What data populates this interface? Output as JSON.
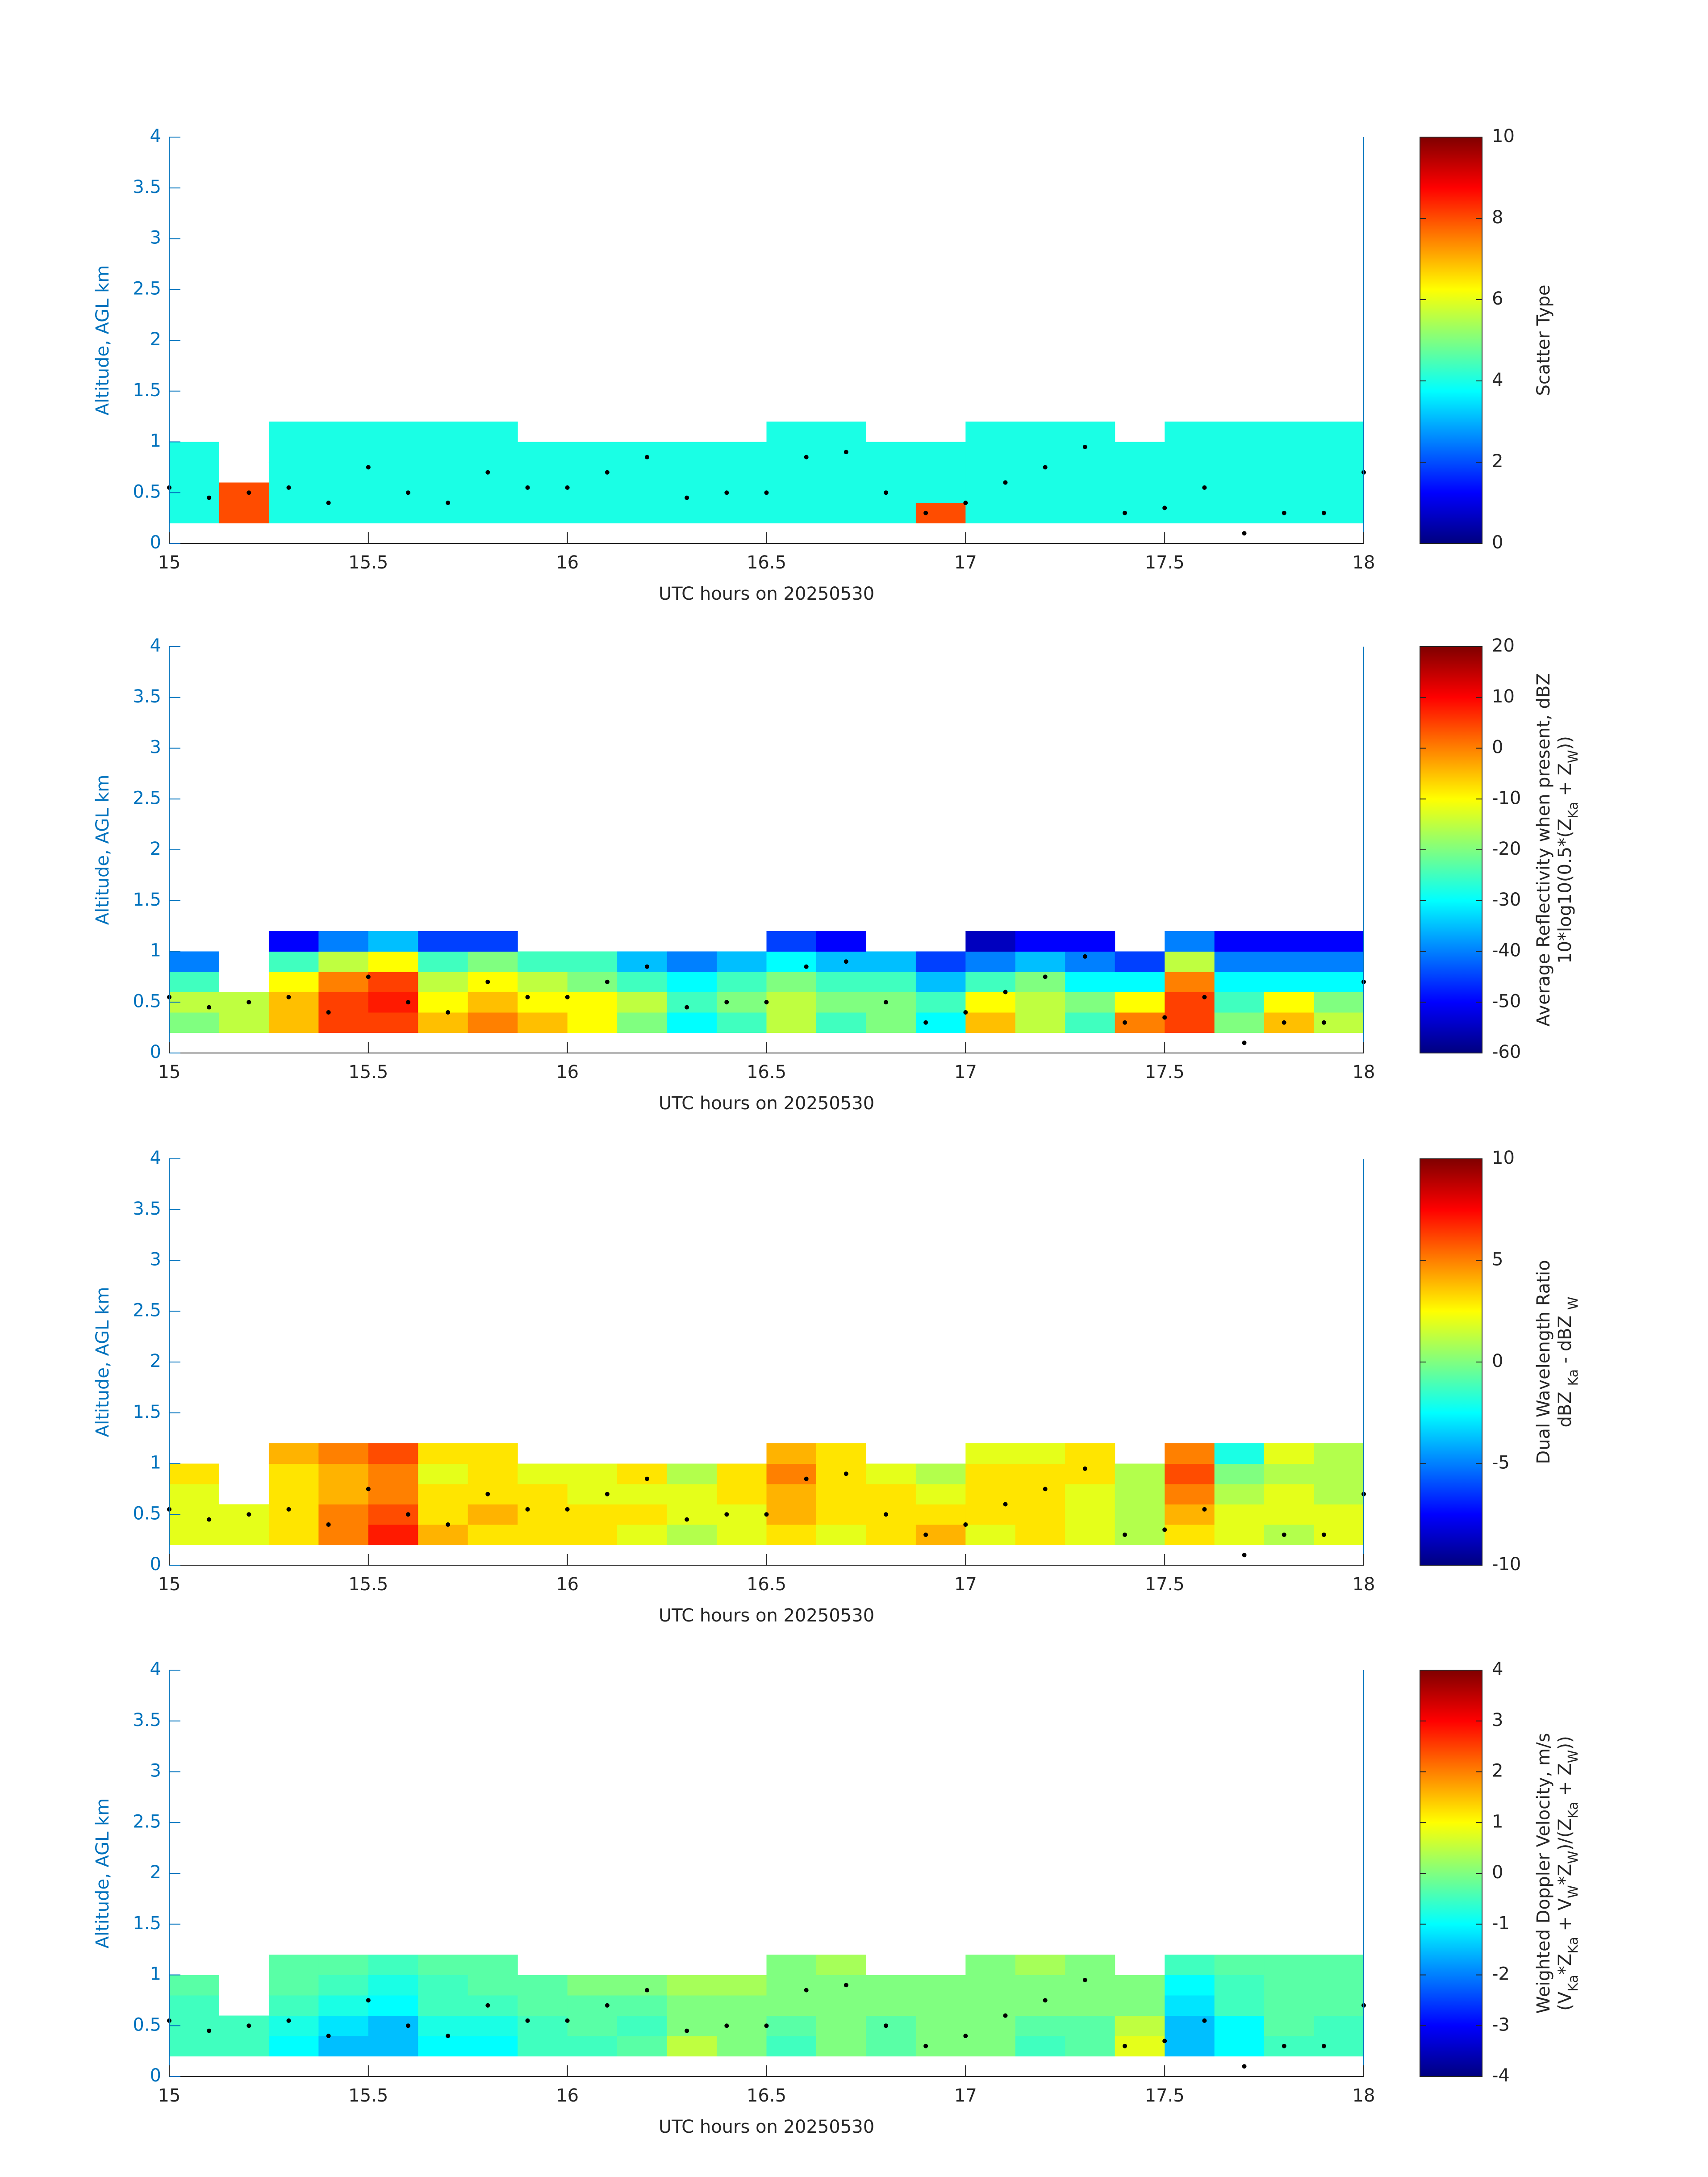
{
  "chart_data": [
    {
      "type": "heatmap",
      "xlabel": "UTC hours on 20250530",
      "ylabel": "Altitude, AGL km",
      "clabel": [
        [
          "Scatter Type"
        ]
      ],
      "colormap": "jet",
      "clim": [
        0,
        10
      ],
      "cticks": [
        0,
        2,
        4,
        6,
        8,
        10
      ],
      "xlim": [
        15,
        18
      ],
      "xticks": [
        15,
        15.5,
        16,
        16.5,
        17,
        17.5,
        18
      ],
      "ylim": [
        0,
        4
      ],
      "yticks": [
        0,
        0.5,
        1,
        1.5,
        2,
        2.5,
        3,
        3.5,
        4
      ],
      "x_edges": [
        15,
        15.125,
        15.25,
        15.375,
        15.5,
        15.625,
        15.75,
        15.875,
        16,
        16.125,
        16.25,
        16.375,
        16.5,
        16.625,
        16.75,
        16.875,
        17,
        17.125,
        17.25,
        17.375,
        17.5,
        17.625,
        17.75,
        17.875,
        18
      ],
      "y_edges": [
        0.2,
        0.4,
        0.6,
        0.8,
        1.0,
        1.2
      ],
      "values": [
        [
          4,
          8,
          4,
          4,
          4,
          4,
          4,
          4,
          4,
          4,
          4,
          4,
          4,
          4,
          4,
          8,
          4,
          4,
          4,
          4,
          4,
          4,
          4,
          4
        ],
        [
          4,
          8,
          4,
          4,
          4,
          4,
          4,
          4,
          4,
          4,
          4,
          4,
          4,
          4,
          4,
          4,
          4,
          4,
          4,
          4,
          4,
          4,
          4,
          4
        ],
        [
          4,
          null,
          4,
          4,
          4,
          4,
          4,
          4,
          4,
          4,
          4,
          4,
          4,
          4,
          4,
          4,
          4,
          4,
          4,
          4,
          4,
          4,
          4,
          4
        ],
        [
          4,
          null,
          4,
          4,
          4,
          4,
          4,
          4,
          4,
          4,
          4,
          4,
          4,
          4,
          4,
          4,
          4,
          4,
          4,
          4,
          4,
          4,
          4,
          4
        ],
        [
          null,
          null,
          4,
          4,
          4,
          4,
          4,
          null,
          null,
          null,
          null,
          null,
          4,
          4,
          null,
          null,
          4,
          4,
          4,
          null,
          4,
          4,
          4,
          4
        ]
      ],
      "series": [
        {
          "type": "scatter",
          "color": "#000000",
          "x": [
            15.0,
            15.1,
            15.2,
            15.3,
            15.4,
            15.5,
            15.6,
            15.7,
            15.8,
            15.9,
            16.0,
            16.1,
            16.2,
            16.3,
            16.4,
            16.5,
            16.6,
            16.7,
            16.8,
            16.9,
            17.0,
            17.1,
            17.2,
            17.3,
            17.4,
            17.5,
            17.6,
            17.7,
            17.8,
            17.9,
            18.0
          ],
          "y": [
            0.55,
            0.45,
            0.5,
            0.55,
            0.4,
            0.75,
            0.5,
            0.4,
            0.7,
            0.55,
            0.55,
            0.7,
            0.85,
            0.45,
            0.5,
            0.5,
            0.85,
            0.9,
            0.5,
            0.3,
            0.4,
            0.6,
            0.75,
            0.95,
            0.3,
            0.35,
            0.55,
            0.1,
            0.3,
            0.3,
            0.7
          ]
        }
      ]
    },
    {
      "type": "heatmap",
      "xlabel": "UTC hours on 20250530",
      "ylabel": "Altitude, AGL km",
      "clabel": [
        [
          "Average Reflectivity when present, dBZ"
        ],
        [
          "10*log10(0.5*(Z",
          "Ka",
          " + Z",
          "W",
          "))"
        ]
      ],
      "colormap": "jet",
      "clim": [
        -60,
        20
      ],
      "cticks": [
        -60,
        -50,
        -40,
        -30,
        -20,
        -10,
        0,
        10,
        20
      ],
      "xlim": [
        15,
        18
      ],
      "xticks": [
        15,
        15.5,
        16,
        16.5,
        17,
        17.5,
        18
      ],
      "ylim": [
        0,
        4
      ],
      "yticks": [
        0,
        0.5,
        1,
        1.5,
        2,
        2.5,
        3,
        3.5,
        4
      ],
      "x_edges": [
        15,
        15.125,
        15.25,
        15.375,
        15.5,
        15.625,
        15.75,
        15.875,
        16,
        16.125,
        16.25,
        16.375,
        16.5,
        16.625,
        16.75,
        16.875,
        17,
        17.125,
        17.25,
        17.375,
        17.5,
        17.625,
        17.75,
        17.875,
        18
      ],
      "y_edges": [
        0.2,
        0.4,
        0.6,
        0.8,
        1.0,
        1.2
      ],
      "values": [
        [
          -20,
          -15,
          -5,
          5,
          5,
          -5,
          0,
          -5,
          -10,
          -20,
          -30,
          -25,
          -15,
          -25,
          -20,
          -30,
          -5,
          -15,
          -25,
          0,
          5,
          -20,
          -5,
          -15
        ],
        [
          -15,
          -15,
          -5,
          5,
          8,
          -10,
          -5,
          -10,
          -10,
          -15,
          -25,
          -20,
          -15,
          -20,
          -20,
          -25,
          -10,
          -15,
          -20,
          -10,
          5,
          -25,
          -10,
          -20
        ],
        [
          -25,
          null,
          -10,
          0,
          5,
          -15,
          -10,
          -15,
          -20,
          -25,
          -30,
          -25,
          -20,
          -25,
          -25,
          -35,
          -25,
          -20,
          -30,
          -30,
          0,
          -30,
          -30,
          -30
        ],
        [
          -40,
          null,
          -25,
          -15,
          -10,
          -25,
          -20,
          -25,
          -25,
          -35,
          -40,
          -35,
          -30,
          -35,
          -35,
          -45,
          -40,
          -35,
          -40,
          -45,
          -15,
          -40,
          -40,
          -40
        ],
        [
          null,
          null,
          -50,
          -40,
          -35,
          -45,
          -45,
          null,
          null,
          null,
          null,
          null,
          -45,
          -50,
          null,
          null,
          -55,
          -50,
          -50,
          null,
          -40,
          -50,
          -50,
          -50
        ]
      ],
      "series": [
        {
          "type": "scatter",
          "color": "#000000",
          "x": [
            15.0,
            15.1,
            15.2,
            15.3,
            15.4,
            15.5,
            15.6,
            15.7,
            15.8,
            15.9,
            16.0,
            16.1,
            16.2,
            16.3,
            16.4,
            16.5,
            16.6,
            16.7,
            16.8,
            16.9,
            17.0,
            17.1,
            17.2,
            17.3,
            17.4,
            17.5,
            17.6,
            17.7,
            17.8,
            17.9,
            18.0
          ],
          "y": [
            0.55,
            0.45,
            0.5,
            0.55,
            0.4,
            0.75,
            0.5,
            0.4,
            0.7,
            0.55,
            0.55,
            0.7,
            0.85,
            0.45,
            0.5,
            0.5,
            0.85,
            0.9,
            0.5,
            0.3,
            0.4,
            0.6,
            0.75,
            0.95,
            0.3,
            0.35,
            0.55,
            0.1,
            0.3,
            0.3,
            0.7
          ]
        }
      ]
    },
    {
      "type": "heatmap",
      "xlabel": "UTC hours on 20250530",
      "ylabel": "Altitude, AGL km",
      "clabel": [
        [
          "Dual Wavelength Ratio"
        ],
        [
          "dBZ ",
          "Ka",
          " - dBZ ",
          "W"
        ]
      ],
      "colormap": "jet",
      "clim": [
        -10,
        10
      ],
      "cticks": [
        -10,
        -5,
        0,
        5,
        10
      ],
      "xlim": [
        15,
        18
      ],
      "xticks": [
        15,
        15.5,
        16,
        16.5,
        17,
        17.5,
        18
      ],
      "ylim": [
        0,
        4
      ],
      "yticks": [
        0,
        0.5,
        1,
        1.5,
        2,
        2.5,
        3,
        3.5,
        4
      ],
      "x_edges": [
        15,
        15.125,
        15.25,
        15.375,
        15.5,
        15.625,
        15.75,
        15.875,
        16,
        16.125,
        16.25,
        16.375,
        16.5,
        16.625,
        16.75,
        16.875,
        17,
        17.125,
        17.25,
        17.375,
        17.5,
        17.625,
        17.75,
        17.875,
        18
      ],
      "y_edges": [
        0.2,
        0.4,
        0.6,
        0.8,
        1.0,
        1.2
      ],
      "values": [
        [
          2,
          2,
          3,
          5,
          7,
          4,
          3,
          3,
          3,
          2,
          1,
          2,
          3,
          2,
          3,
          4,
          2,
          3,
          2,
          1,
          3,
          2,
          1,
          2
        ],
        [
          2,
          2,
          3,
          5,
          6,
          3,
          4,
          3,
          3,
          3,
          2,
          2,
          4,
          3,
          3,
          3,
          3,
          3,
          2,
          1,
          4,
          2,
          2,
          2
        ],
        [
          2,
          null,
          3,
          4,
          5,
          3,
          3,
          3,
          2,
          2,
          2,
          3,
          4,
          3,
          3,
          2,
          3,
          3,
          2,
          1,
          5,
          1,
          2,
          1
        ],
        [
          3,
          null,
          3,
          4,
          5,
          2,
          3,
          2,
          2,
          3,
          1,
          3,
          5,
          3,
          2,
          1,
          3,
          3,
          3,
          1,
          6,
          0,
          1,
          1
        ],
        [
          null,
          null,
          4,
          5,
          6,
          3,
          3,
          null,
          null,
          null,
          null,
          null,
          4,
          3,
          null,
          null,
          2,
          2,
          3,
          null,
          5,
          -2,
          2,
          1
        ]
      ],
      "series": [
        {
          "type": "scatter",
          "color": "#000000",
          "x": [
            15.0,
            15.1,
            15.2,
            15.3,
            15.4,
            15.5,
            15.6,
            15.7,
            15.8,
            15.9,
            16.0,
            16.1,
            16.2,
            16.3,
            16.4,
            16.5,
            16.6,
            16.7,
            16.8,
            16.9,
            17.0,
            17.1,
            17.2,
            17.3,
            17.4,
            17.5,
            17.6,
            17.7,
            17.8,
            17.9,
            18.0
          ],
          "y": [
            0.55,
            0.45,
            0.5,
            0.55,
            0.4,
            0.75,
            0.5,
            0.4,
            0.7,
            0.55,
            0.55,
            0.7,
            0.85,
            0.45,
            0.5,
            0.5,
            0.85,
            0.9,
            0.5,
            0.3,
            0.4,
            0.6,
            0.75,
            0.95,
            0.3,
            0.35,
            0.55,
            0.1,
            0.3,
            0.3,
            0.7
          ]
        }
      ]
    },
    {
      "type": "heatmap",
      "xlabel": "UTC hours on 20250530",
      "ylabel": "Altitude, AGL km",
      "clabel": [
        [
          "Weighted Doppler Velocity, m/s"
        ],
        [
          "(V",
          "Ka",
          "*Z",
          "Ka",
          " + V",
          "W",
          "*Z",
          "W",
          ")/(Z",
          "Ka",
          " + Z",
          "W",
          "))"
        ]
      ],
      "colormap": "jet",
      "clim": [
        -4,
        4
      ],
      "cticks": [
        -4,
        -3,
        -2,
        -1,
        0,
        1,
        2,
        3,
        4
      ],
      "xlim": [
        15,
        18
      ],
      "xticks": [
        15,
        15.5,
        16,
        16.5,
        17,
        17.5,
        18
      ],
      "ylim": [
        0,
        4
      ],
      "yticks": [
        0,
        0.5,
        1,
        1.5,
        2,
        2.5,
        3,
        3.5,
        4
      ],
      "x_edges": [
        15,
        15.125,
        15.25,
        15.375,
        15.5,
        15.625,
        15.75,
        15.875,
        16,
        16.125,
        16.25,
        16.375,
        16.5,
        16.625,
        16.75,
        16.875,
        17,
        17.125,
        17.25,
        17.375,
        17.5,
        17.625,
        17.75,
        17.875,
        18
      ],
      "y_edges": [
        0.2,
        0.4,
        0.6,
        0.8,
        1.0,
        1.2
      ],
      "values": [
        [
          -0.5,
          -0.5,
          -1,
          -1.5,
          -1.5,
          -1,
          -1,
          -0.5,
          -0.5,
          -0.3,
          0.5,
          0,
          -0.5,
          0,
          -0.3,
          0,
          0,
          -0.5,
          -0.3,
          0.8,
          -1.5,
          -1,
          -0.5,
          -0.5
        ],
        [
          -0.5,
          -0.5,
          -0.8,
          -1.2,
          -1.5,
          -0.8,
          -0.8,
          -0.5,
          -0.3,
          -0.5,
          0,
          0,
          -0.3,
          0,
          -0.3,
          0,
          0,
          -0.3,
          -0.3,
          0.5,
          -1.5,
          -1,
          -0.3,
          -0.5
        ],
        [
          -0.5,
          null,
          -0.5,
          -0.8,
          -1,
          -0.5,
          -0.5,
          -0.3,
          -0.3,
          -0.3,
          0,
          0,
          0,
          0,
          0,
          0,
          0,
          0,
          0,
          0,
          -1.2,
          -0.5,
          -0.3,
          -0.3
        ],
        [
          -0.3,
          null,
          -0.3,
          -0.5,
          -0.8,
          -0.5,
          -0.3,
          -0.3,
          0,
          0,
          0.3,
          0.3,
          0,
          0,
          0,
          0,
          0,
          0,
          0,
          0,
          -1,
          -0.5,
          -0.3,
          -0.3
        ],
        [
          null,
          null,
          -0.3,
          -0.3,
          -0.5,
          -0.3,
          -0.3,
          null,
          null,
          null,
          null,
          null,
          0,
          0.3,
          null,
          null,
          0,
          0.3,
          0,
          null,
          -0.5,
          -0.3,
          -0.3,
          -0.3
        ]
      ],
      "series": [
        {
          "type": "scatter",
          "color": "#000000",
          "x": [
            15.0,
            15.1,
            15.2,
            15.3,
            15.4,
            15.5,
            15.6,
            15.7,
            15.8,
            15.9,
            16.0,
            16.1,
            16.2,
            16.3,
            16.4,
            16.5,
            16.6,
            16.7,
            16.8,
            16.9,
            17.0,
            17.1,
            17.2,
            17.3,
            17.4,
            17.5,
            17.6,
            17.7,
            17.8,
            17.9,
            18.0
          ],
          "y": [
            0.55,
            0.45,
            0.5,
            0.55,
            0.4,
            0.75,
            0.5,
            0.4,
            0.7,
            0.55,
            0.55,
            0.7,
            0.85,
            0.45,
            0.5,
            0.5,
            0.85,
            0.9,
            0.5,
            0.3,
            0.4,
            0.6,
            0.75,
            0.95,
            0.3,
            0.35,
            0.55,
            0.1,
            0.3,
            0.3,
            0.7
          ]
        }
      ]
    }
  ]
}
